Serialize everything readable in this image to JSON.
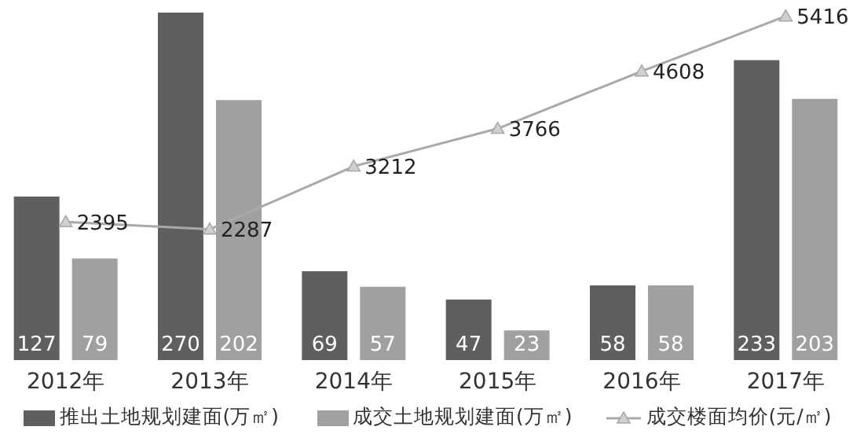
{
  "chart_data": {
    "type": "bar",
    "categories": [
      "2012年",
      "2013年",
      "2014年",
      "2015年",
      "2016年",
      "2017年"
    ],
    "series": [
      {
        "name": "推出土地规划建面(万㎡)",
        "color": "#5f5f5f",
        "values": [
          127,
          270,
          69,
          47,
          58,
          233
        ]
      },
      {
        "name": "成交土地规划建面(万㎡)",
        "color": "#a0a0a0",
        "values": [
          79,
          202,
          57,
          23,
          58,
          203
        ]
      },
      {
        "name": "成交楼面均价(元/㎡)",
        "type": "line",
        "axis": "y2",
        "color": "#a9a9a9",
        "marker": "triangle",
        "values": [
          2395,
          2287,
          3212,
          3766,
          4608,
          5416
        ]
      }
    ],
    "tick_labels": "x",
    "data_labels": true,
    "legend": "bottom"
  }
}
